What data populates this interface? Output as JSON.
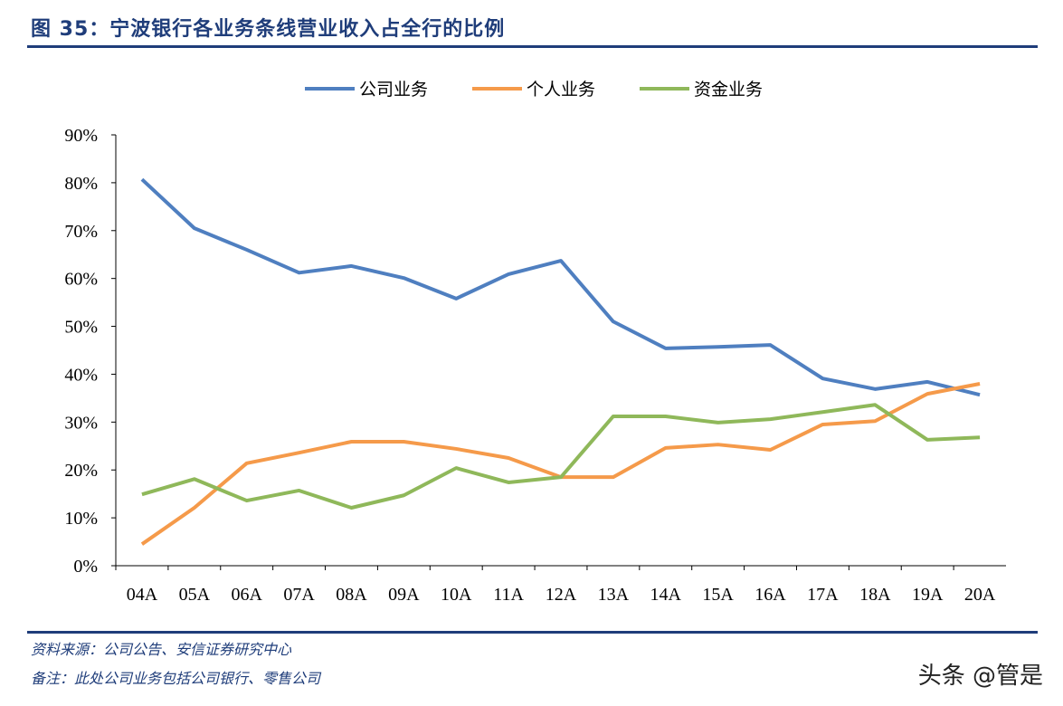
{
  "title": "图 35：宁波银行各业务条线营业收入占全行的比例",
  "source": "资料来源：公司公告、安信证券研究中心",
  "note": "备注：此处公司业务包括公司银行、零售公司",
  "watermark": "头条 @管是",
  "chart_data": {
    "type": "line",
    "title": "",
    "xlabel": "",
    "ylabel": "",
    "ylim": [
      0,
      90
    ],
    "yticks": [
      "0%",
      "10%",
      "20%",
      "30%",
      "40%",
      "50%",
      "60%",
      "70%",
      "80%",
      "90%"
    ],
    "grid": false,
    "legend_position": "top",
    "categories": [
      "04A",
      "05A",
      "06A",
      "07A",
      "08A",
      "09A",
      "10A",
      "11A",
      "12A",
      "13A",
      "14A",
      "15A",
      "16A",
      "17A",
      "18A",
      "19A",
      "20A"
    ],
    "series": [
      {
        "name": "公司业务",
        "color": "#4f7fc0",
        "values": [
          80.7,
          70.5,
          66.0,
          61.2,
          62.6,
          60.1,
          55.8,
          60.9,
          63.7,
          51.0,
          45.4,
          45.7,
          46.1,
          39.1,
          36.9,
          38.4,
          35.7
        ]
      },
      {
        "name": "个人业务",
        "color": "#f59a4a",
        "values": [
          4.5,
          12.1,
          21.4,
          23.6,
          25.9,
          25.9,
          24.4,
          22.5,
          18.5,
          18.5,
          24.6,
          25.3,
          24.2,
          29.5,
          30.2,
          35.9,
          38.0
        ]
      },
      {
        "name": "资金业务",
        "color": "#8fb85a",
        "values": [
          14.9,
          18.1,
          13.6,
          15.7,
          12.1,
          14.7,
          20.4,
          17.4,
          18.5,
          31.2,
          31.2,
          29.9,
          30.6,
          32.1,
          33.6,
          26.3,
          26.8
        ]
      }
    ]
  }
}
